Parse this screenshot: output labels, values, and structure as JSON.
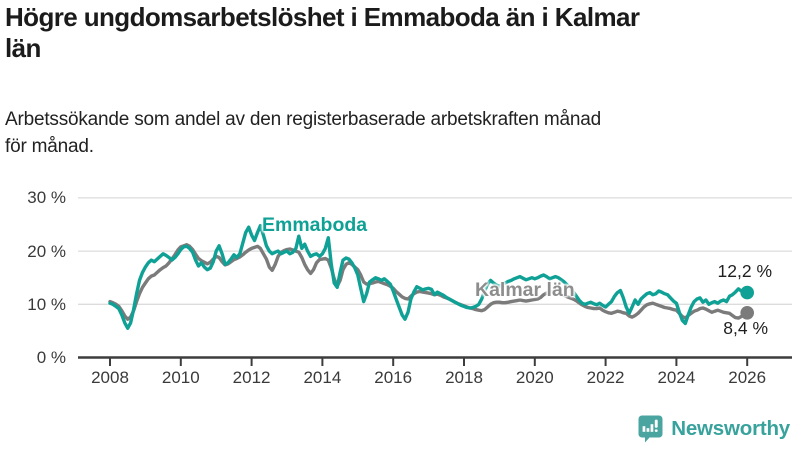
{
  "header": {
    "title_lines": [
      "Högre ungdomsarbetslöshet i Emmaboda än i Kalmar",
      "län"
    ],
    "subtitle_lines": [
      "Arbetssökande som andel av den registerbaserade arbetskraften månad",
      "för månad."
    ]
  },
  "chart_data": {
    "type": "line",
    "title": "Högre ungdomsarbetslöshet i Emmaboda än i Kalmar län",
    "subtitle": "Arbetssökande som andel av den registerbaserade arbetskraften månad för månad.",
    "x_start_year": 2008,
    "x_months_per_point": 1,
    "xlim": [
      2008,
      2026
    ],
    "ylim": [
      0,
      30
    ],
    "grid": true,
    "x_ticks": [
      2008,
      2010,
      2012,
      2014,
      2016,
      2018,
      2020,
      2022,
      2024,
      2026
    ],
    "y_ticks": [
      {
        "value": 0,
        "label": "0 %"
      },
      {
        "value": 10,
        "label": "10 %"
      },
      {
        "value": 20,
        "label": "20 %"
      },
      {
        "value": 30,
        "label": "30 %"
      }
    ],
    "series": [
      {
        "name": "Emmaboda",
        "color": "#10a196",
        "label_color": "#10a196",
        "end_label": "12,2 %",
        "end_value": 12.2,
        "values": [
          10.2,
          10.0,
          9.6,
          9.2,
          8.0,
          6.5,
          5.5,
          6.5,
          9.0,
          12.0,
          14.5,
          16.0,
          17.0,
          17.8,
          18.3,
          18.0,
          18.5,
          19.0,
          19.5,
          19.2,
          18.8,
          18.3,
          18.8,
          19.5,
          20.3,
          20.8,
          20.9,
          20.5,
          19.8,
          18.3,
          17.2,
          17.8,
          17.0,
          16.5,
          16.8,
          18.0,
          20.0,
          21.0,
          19.5,
          17.5,
          17.8,
          18.5,
          19.3,
          18.8,
          19.5,
          21.5,
          23.5,
          24.5,
          23.0,
          22.0,
          23.5,
          24.8,
          23.0,
          21.0,
          20.0,
          19.5,
          19.8,
          20.0,
          19.5,
          19.8,
          20.0,
          19.5,
          19.8,
          20.5,
          22.8,
          20.5,
          21.3,
          20.0,
          19.0,
          19.3,
          19.5,
          19.0,
          19.5,
          20.5,
          22.5,
          17.5,
          14.0,
          13.2,
          16.0,
          18.3,
          18.7,
          18.5,
          17.8,
          16.8,
          15.5,
          13.0,
          10.5,
          12.0,
          14.2,
          14.6,
          15.0,
          14.8,
          14.5,
          14.8,
          14.3,
          13.8,
          12.5,
          11.0,
          9.5,
          8.0,
          7.2,
          8.5,
          11.0,
          12.3,
          13.3,
          13.0,
          12.7,
          12.9,
          13.0,
          12.8,
          11.8,
          12.3,
          12.0,
          11.7,
          11.3,
          11.0,
          10.7,
          10.4,
          10.1,
          9.8,
          9.6,
          9.4,
          9.3,
          9.4,
          9.6,
          10.0,
          11.0,
          12.5,
          13.8,
          14.5,
          14.0,
          13.6,
          13.4,
          13.7,
          14.0,
          14.3,
          14.5,
          14.8,
          15.0,
          15.2,
          14.9,
          14.6,
          14.8,
          15.0,
          14.8,
          15.0,
          15.3,
          15.5,
          15.2,
          14.8,
          15.0,
          15.2,
          15.0,
          14.6,
          14.2,
          13.6,
          13.0,
          12.4,
          11.6,
          10.8,
          10.2,
          10.0,
          10.2,
          10.4,
          10.1,
          9.9,
          10.2,
          9.8,
          9.5,
          10.0,
          10.5,
          11.5,
          12.2,
          12.6,
          11.2,
          9.5,
          8.3,
          9.5,
          10.8,
          10.0,
          11.0,
          11.5,
          12.0,
          12.2,
          11.8,
          12.0,
          12.5,
          12.3,
          12.0,
          11.8,
          11.2,
          10.6,
          10.2,
          8.5,
          7.0,
          6.4,
          8.0,
          9.5,
          10.5,
          11.0,
          11.2,
          10.4,
          10.8,
          10.0,
          10.3,
          10.5,
          10.2,
          10.6,
          10.8,
          10.5,
          11.5,
          11.8,
          12.3,
          12.9,
          12.5,
          12.3,
          12.2
        ]
      },
      {
        "name": "Kalmar län",
        "color": "#7b7b7b",
        "label_color": "#8d8d8d",
        "end_label": "8,4 %",
        "end_value": 8.4,
        "values": [
          10.5,
          10.3,
          10.0,
          9.6,
          8.8,
          7.8,
          7.2,
          7.6,
          8.8,
          10.5,
          12.0,
          13.2,
          14.0,
          14.8,
          15.3,
          15.5,
          16.0,
          16.5,
          16.9,
          17.2,
          17.8,
          18.5,
          19.3,
          20.2,
          20.8,
          21.0,
          21.2,
          20.9,
          20.3,
          19.4,
          18.6,
          18.2,
          17.9,
          17.6,
          17.9,
          18.5,
          19.0,
          18.8,
          18.0,
          17.4,
          17.6,
          18.0,
          18.4,
          18.6,
          18.9,
          19.3,
          19.8,
          20.2,
          20.5,
          20.7,
          20.9,
          20.5,
          19.5,
          18.5,
          17.0,
          16.4,
          17.5,
          19.0,
          19.8,
          20.1,
          20.3,
          20.4,
          20.2,
          20.0,
          19.8,
          18.8,
          17.5,
          16.5,
          15.8,
          16.5,
          17.8,
          18.4,
          18.5,
          18.6,
          18.3,
          16.8,
          14.8,
          13.4,
          14.5,
          16.5,
          17.5,
          17.8,
          17.5,
          17.0,
          16.5,
          15.5,
          14.2,
          13.8,
          13.9,
          14.0,
          14.2,
          14.3,
          14.1,
          13.9,
          13.7,
          13.4,
          13.0,
          12.4,
          11.9,
          11.4,
          11.1,
          11.0,
          11.5,
          12.0,
          12.3,
          12.4,
          12.3,
          12.2,
          12.1,
          12.0,
          11.8,
          11.9,
          11.7,
          11.4,
          11.2,
          11.0,
          10.7,
          10.4,
          10.1,
          9.9,
          9.7,
          9.5,
          9.3,
          9.2,
          9.0,
          8.9,
          8.8,
          9.0,
          9.5,
          10.0,
          10.3,
          10.4,
          10.4,
          10.3,
          10.3,
          10.4,
          10.5,
          10.6,
          10.7,
          10.8,
          10.7,
          10.6,
          10.7,
          10.8,
          10.9,
          11.0,
          11.3,
          11.8,
          12.1,
          12.3,
          12.4,
          12.3,
          12.1,
          11.9,
          11.7,
          11.4,
          11.2,
          11.0,
          10.7,
          10.3,
          9.9,
          9.6,
          9.4,
          9.3,
          9.2,
          9.2,
          9.3,
          8.9,
          8.6,
          8.4,
          8.3,
          8.5,
          8.7,
          8.6,
          8.4,
          8.3,
          7.8,
          7.6,
          7.9,
          8.3,
          8.9,
          9.5,
          9.9,
          10.1,
          10.2,
          10.0,
          9.8,
          9.6,
          9.4,
          9.3,
          9.2,
          9.0,
          8.9,
          8.3,
          7.7,
          7.4,
          7.9,
          8.3,
          8.7,
          8.9,
          9.2,
          9.3,
          9.1,
          8.8,
          8.5,
          8.7,
          8.9,
          8.7,
          8.5,
          8.4,
          8.3,
          7.9,
          7.5,
          7.4,
          7.7,
          8.1,
          8.4
        ]
      }
    ]
  },
  "footer": {
    "logo_text": "Newsworthy"
  }
}
